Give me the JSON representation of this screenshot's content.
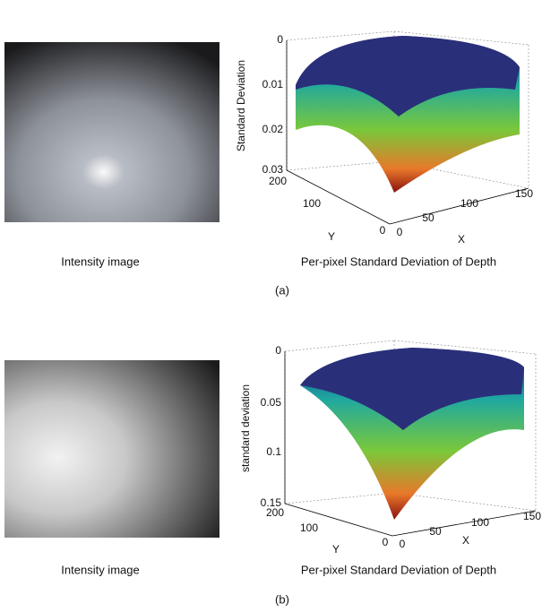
{
  "panels": [
    {
      "image_caption": "Intensity image",
      "plot_caption": "Per-pixel Standard Deviation of Depth",
      "label": "(a)",
      "z_label": "Standard Deviation",
      "x_label": "X",
      "y_label": "Y",
      "z_ticks": [
        0,
        0.01,
        0.02,
        0.03
      ],
      "y_ticks": [
        200,
        100,
        0
      ],
      "x_ticks": [
        0,
        50,
        100,
        150
      ]
    },
    {
      "image_caption": "Intensity image",
      "plot_caption": "Per-pixel Standard Deviation of Depth",
      "label": "(b)",
      "z_label": "standard deviation",
      "x_label": "X",
      "y_label": "Y",
      "z_ticks": [
        0,
        0.05,
        0.1,
        0.15
      ],
      "y_ticks": [
        200,
        100,
        0
      ],
      "x_ticks": [
        0,
        50,
        100,
        150
      ]
    }
  ]
}
